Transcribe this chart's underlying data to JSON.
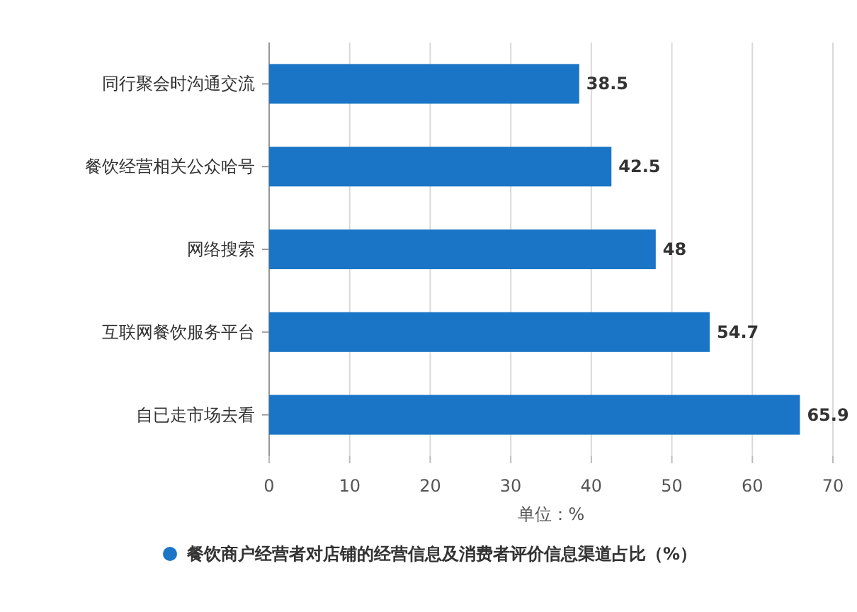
{
  "chart_data": {
    "type": "bar",
    "orientation": "horizontal",
    "categories": [
      "同行聚会时沟通交流",
      "餐饮经营相关公众哈号",
      "网络搜索",
      "互联网餐饮服务平台",
      "自已走市场去看"
    ],
    "series": [
      {
        "name": "餐饮商户经营者对店铺的经营信息及消费者评价信息渠道占比（%）",
        "color": "#1a75c6",
        "values": [
          38.5,
          42.5,
          48,
          54.7,
          65.9
        ]
      }
    ],
    "xlabel": "单位：%",
    "xlim": [
      0,
      70
    ],
    "xticks": [
      0,
      10,
      20,
      30,
      40,
      50,
      60,
      70
    ],
    "grid": "x",
    "data_labels": true,
    "legend": "bottom",
    "marker": "circle"
  }
}
